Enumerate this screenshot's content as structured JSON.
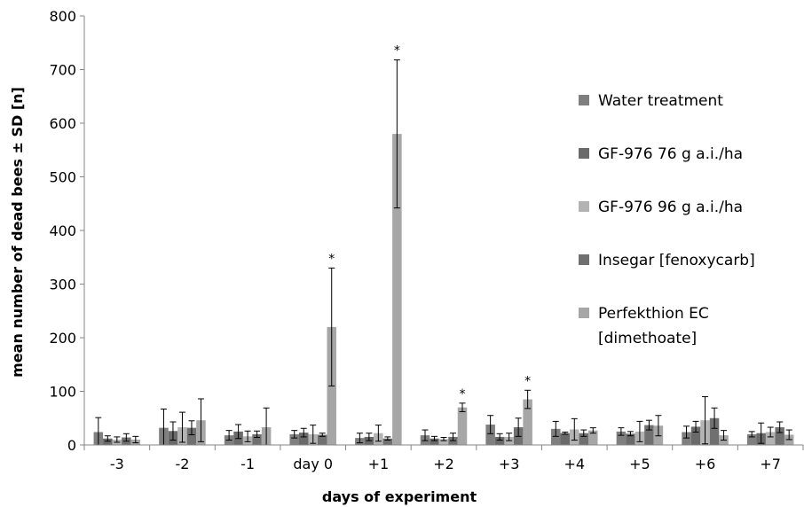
{
  "chart_data": {
    "type": "bar",
    "xlabel": "days of experiment",
    "ylabel": "mean number of dead bees ± SD [n]",
    "ylim": [
      0,
      800
    ],
    "yticks": [
      0,
      100,
      200,
      300,
      400,
      500,
      600,
      700,
      800
    ],
    "grid": false,
    "legend_position": "right",
    "categories": [
      "-3",
      "-2",
      "-1",
      "day 0",
      "+1",
      "+2",
      "+3",
      "+4",
      "+5",
      "+6",
      "+7"
    ],
    "series": [
      {
        "name": "Water treatment",
        "color": "#7f7f7f",
        "values": [
          24,
          32,
          18,
          20,
          13,
          18,
          38,
          30,
          25,
          24,
          20
        ],
        "sd": [
          27,
          35,
          9,
          7,
          9,
          10,
          17,
          14,
          7,
          11,
          5
        ]
      },
      {
        "name": "GF-976 76 g a.i./ha",
        "color": "#6a6a6a",
        "values": [
          12,
          26,
          25,
          23,
          15,
          12,
          15,
          22,
          21,
          34,
          22
        ],
        "sd": [
          5,
          17,
          13,
          8,
          7,
          4,
          6,
          2,
          4,
          10,
          19
        ]
      },
      {
        "name": "GF-976 96 g a.i./ha",
        "color": "#b3b3b3",
        "values": [
          10,
          33,
          16,
          20,
          22,
          11,
          15,
          29,
          25,
          46,
          24
        ],
        "sd": [
          5,
          28,
          10,
          17,
          15,
          3,
          7,
          20,
          19,
          44,
          9
        ]
      },
      {
        "name": "Insegar [fenoxycarb]",
        "color": "#707070",
        "values": [
          14,
          32,
          20,
          19,
          12,
          15,
          33,
          22,
          37,
          50,
          33
        ],
        "sd": [
          7,
          13,
          6,
          3,
          3,
          7,
          17,
          6,
          9,
          19,
          10
        ]
      },
      {
        "name": "Perfekthion EC [dimethoate]",
        "legend_lines": [
          "Perfekthion EC",
          "[dimethoate]"
        ],
        "color": "#a6a6a6",
        "values": [
          10,
          46,
          33,
          220,
          580,
          70,
          85,
          27,
          36,
          18,
          19
        ],
        "sd": [
          6,
          40,
          36,
          110,
          138,
          8,
          17,
          5,
          19,
          9,
          9
        ]
      }
    ],
    "annotations": [
      {
        "text": "*",
        "category": "day 0",
        "series": "Perfekthion EC [dimethoate]"
      },
      {
        "text": "*",
        "category": "+1",
        "series": "Perfekthion EC [dimethoate]"
      },
      {
        "text": "*",
        "category": "+2",
        "series": "Perfekthion EC [dimethoate]"
      },
      {
        "text": "*",
        "category": "+3",
        "series": "Perfekthion EC [dimethoate]"
      }
    ]
  }
}
